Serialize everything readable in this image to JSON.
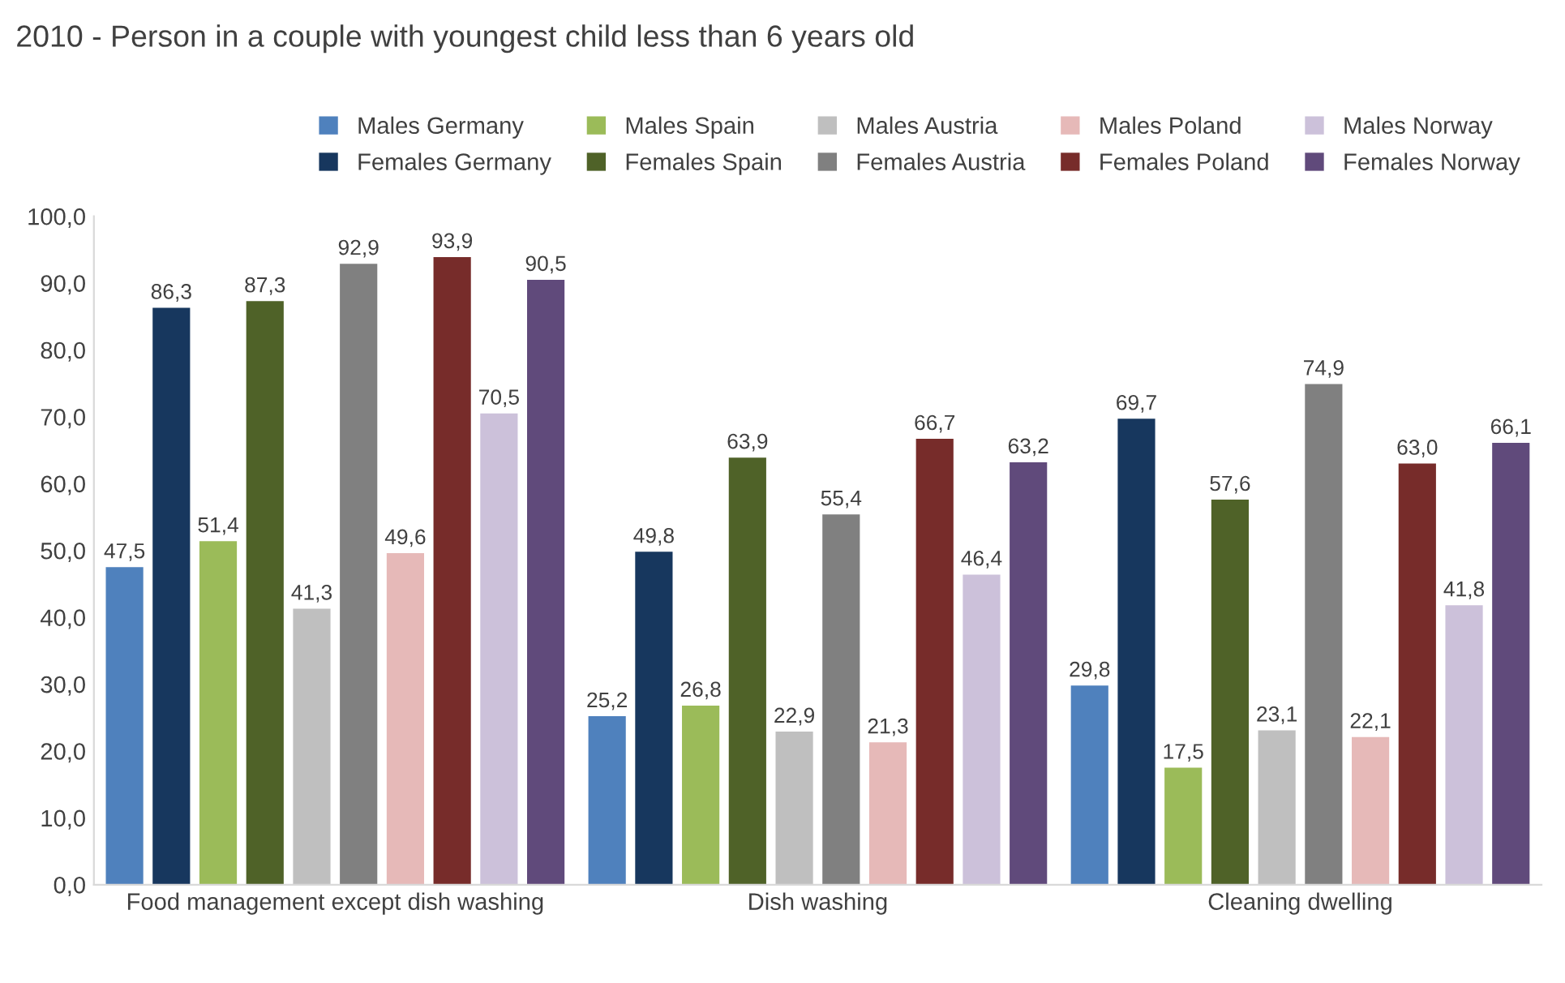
{
  "chart_data": {
    "type": "bar",
    "title": "2010 - Person in a couple with youngest child less than 6 years old",
    "categories": [
      "Food management except dish washing",
      "Dish washing",
      "Cleaning dwelling"
    ],
    "series": [
      {
        "name": "Males Germany",
        "color": "#4f81bd",
        "values": [
          47.5,
          25.2,
          29.8
        ],
        "value_labels": [
          "47,5",
          "25,2",
          "29,8"
        ]
      },
      {
        "name": "Females Germany",
        "color": "#17375e",
        "values": [
          86.3,
          49.8,
          69.7
        ],
        "value_labels": [
          "86,3",
          "49,8",
          "69,7"
        ]
      },
      {
        "name": "Males Spain",
        "color": "#9bbb59",
        "values": [
          51.4,
          26.8,
          17.5
        ],
        "value_labels": [
          "51,4",
          "26,8",
          "17,5"
        ]
      },
      {
        "name": "Females Spain",
        "color": "#4f6228",
        "values": [
          87.3,
          63.9,
          57.6
        ],
        "value_labels": [
          "87,3",
          "63,9",
          "57,6"
        ]
      },
      {
        "name": "Males Austria",
        "color": "#bfbfbf",
        "values": [
          41.3,
          22.9,
          23.1
        ],
        "value_labels": [
          "41,3",
          "22,9",
          "23,1"
        ]
      },
      {
        "name": "Females Austria",
        "color": "#808080",
        "values": [
          92.9,
          55.4,
          74.9
        ],
        "value_labels": [
          "92,9",
          "55,4",
          "74,9"
        ]
      },
      {
        "name": "Males Poland",
        "color": "#e6b9b8",
        "values": [
          49.6,
          21.3,
          22.1
        ],
        "value_labels": [
          "49,6",
          "21,3",
          "22,1"
        ]
      },
      {
        "name": "Females Poland",
        "color": "#772c2a",
        "values": [
          93.9,
          66.7,
          63.0
        ],
        "value_labels": [
          "93,9",
          "66,7",
          "63,0"
        ]
      },
      {
        "name": "Males Norway",
        "color": "#ccc1da",
        "values": [
          70.5,
          46.4,
          41.8
        ],
        "value_labels": [
          "70,5",
          "46,4",
          "41,8"
        ]
      },
      {
        "name": "Females Norway",
        "color": "#604a7b",
        "values": [
          90.5,
          63.2,
          66.1
        ],
        "value_labels": [
          "90,5",
          "63,2",
          "66,1"
        ]
      }
    ],
    "ylim": [
      0,
      100
    ],
    "yticks": [
      {
        "value": 0,
        "label": "0,0"
      },
      {
        "value": 10,
        "label": "10,0"
      },
      {
        "value": 20,
        "label": "20,0"
      },
      {
        "value": 30,
        "label": "30,0"
      },
      {
        "value": 40,
        "label": "40,0"
      },
      {
        "value": 50,
        "label": "50,0"
      },
      {
        "value": 60,
        "label": "60,0"
      },
      {
        "value": 70,
        "label": "70,0"
      },
      {
        "value": 80,
        "label": "80,0"
      },
      {
        "value": 90,
        "label": "90,0"
      },
      {
        "value": 100,
        "label": "100,0"
      }
    ],
    "grid": false,
    "legend": "top right"
  }
}
